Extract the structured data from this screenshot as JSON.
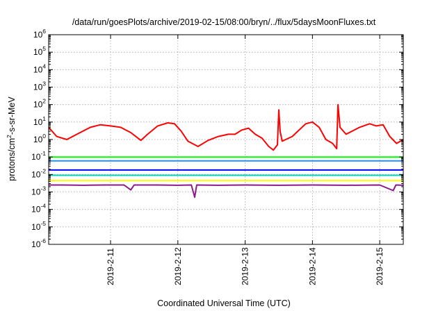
{
  "chart_data": {
    "type": "line",
    "title": "/data/run/goesPlots/archive/2019-02-15/08:00/bryn/../flux/5daysMoonFluxes.txt",
    "xlabel": "Coordinated Universal Time (UTC)",
    "ylabel": {
      "base": "protons/cm",
      "sup": "2",
      "rest": "-s-sr-MeV"
    },
    "x_unit": "days since 2019-02-10T00:00 UTC",
    "xlim": [
      0.08,
      5.35
    ],
    "x_ticks": [
      {
        "value": 1,
        "label": "2019-2-11"
      },
      {
        "value": 2,
        "label": "2019-2-12"
      },
      {
        "value": 3,
        "label": "2019-2-13"
      },
      {
        "value": 4,
        "label": "2019-2-14"
      },
      {
        "value": 5,
        "label": "2019-2-15"
      }
    ],
    "y_scale": "log",
    "ylim_exp": [
      -6,
      6
    ],
    "y_ticks": [
      {
        "base": "10",
        "exp": "-6",
        "value_exp": -6
      },
      {
        "base": "10",
        "exp": "-5",
        "value_exp": -5
      },
      {
        "base": "10",
        "exp": "-4",
        "value_exp": -4
      },
      {
        "base": "10",
        "exp": "-3",
        "value_exp": -3
      },
      {
        "base": "10",
        "exp": "-2",
        "value_exp": -2
      },
      {
        "base": "10",
        "exp": "-1",
        "value_exp": -1
      },
      {
        "base": "10",
        "exp": "0",
        "value_exp": 0
      },
      {
        "base": "10",
        "exp": "1",
        "value_exp": 1
      },
      {
        "base": "10",
        "exp": "2",
        "value_exp": 2
      },
      {
        "base": "10",
        "exp": "3",
        "value_exp": 3
      },
      {
        "base": "10",
        "exp": "4",
        "value_exp": 4
      },
      {
        "base": "10",
        "exp": "5",
        "value_exp": 5
      },
      {
        "base": "10",
        "exp": "6",
        "value_exp": 6
      }
    ],
    "grid": true,
    "series": [
      {
        "color": "#ff0000",
        "points": [
          [
            0.08,
            5.0
          ],
          [
            0.2,
            1.5
          ],
          [
            0.35,
            1.0
          ],
          [
            0.5,
            2.0
          ],
          [
            0.7,
            5.0
          ],
          [
            0.85,
            7.0
          ],
          [
            1.0,
            6.0
          ],
          [
            1.15,
            5.0
          ],
          [
            1.3,
            2.5
          ],
          [
            1.45,
            0.9
          ],
          [
            1.55,
            2.0
          ],
          [
            1.7,
            6.0
          ],
          [
            1.85,
            9.0
          ],
          [
            1.95,
            8.0
          ],
          [
            2.05,
            3.0
          ],
          [
            2.15,
            0.8
          ],
          [
            2.3,
            0.4
          ],
          [
            2.45,
            0.9
          ],
          [
            2.6,
            1.5
          ],
          [
            2.75,
            2.0
          ],
          [
            2.85,
            2.0
          ],
          [
            2.95,
            3.5
          ],
          [
            3.05,
            4.5
          ],
          [
            3.15,
            2.0
          ],
          [
            3.25,
            1.2
          ],
          [
            3.35,
            0.4
          ],
          [
            3.42,
            0.25
          ],
          [
            3.48,
            0.5
          ],
          [
            3.5,
            50.0
          ],
          [
            3.52,
            3.0
          ],
          [
            3.55,
            0.8
          ],
          [
            3.7,
            1.5
          ],
          [
            3.9,
            8.0
          ],
          [
            4.0,
            10.0
          ],
          [
            4.1,
            5.0
          ],
          [
            4.2,
            1.0
          ],
          [
            4.3,
            0.6
          ],
          [
            4.36,
            0.3
          ],
          [
            4.38,
            100.0
          ],
          [
            4.41,
            5.0
          ],
          [
            4.5,
            2.0
          ],
          [
            4.7,
            5.0
          ],
          [
            4.85,
            8.0
          ],
          [
            4.95,
            6.0
          ],
          [
            5.05,
            7.0
          ],
          [
            5.15,
            1.5
          ],
          [
            5.25,
            0.6
          ],
          [
            5.35,
            1.0
          ]
        ]
      },
      {
        "color": "#00ff00",
        "points": [
          [
            0.08,
            0.1
          ],
          [
            1.0,
            0.1
          ],
          [
            2.0,
            0.1
          ],
          [
            3.0,
            0.1
          ],
          [
            4.0,
            0.1
          ],
          [
            5.0,
            0.1
          ],
          [
            5.35,
            0.1
          ]
        ]
      },
      {
        "color": "#1e90ff",
        "points": [
          [
            0.08,
            0.06
          ],
          [
            1.0,
            0.06
          ],
          [
            2.0,
            0.06
          ],
          [
            3.0,
            0.06
          ],
          [
            4.0,
            0.06
          ],
          [
            5.0,
            0.06
          ],
          [
            5.35,
            0.06
          ]
        ]
      },
      {
        "color": "#0000ff",
        "points": [
          [
            0.08,
            0.018
          ],
          [
            1.0,
            0.018
          ],
          [
            2.0,
            0.018
          ],
          [
            3.0,
            0.018
          ],
          [
            4.0,
            0.018
          ],
          [
            5.0,
            0.018
          ],
          [
            5.35,
            0.018
          ]
        ]
      },
      {
        "color": "#00d4b8",
        "points": [
          [
            0.08,
            0.009
          ],
          [
            1.0,
            0.009
          ],
          [
            2.0,
            0.009
          ],
          [
            3.0,
            0.009
          ],
          [
            4.0,
            0.009
          ],
          [
            5.0,
            0.009
          ],
          [
            5.35,
            0.009
          ]
        ]
      },
      {
        "color": "#ffff00",
        "points": [
          [
            0.08,
            0.0045
          ],
          [
            1.0,
            0.0045
          ],
          [
            2.0,
            0.0045
          ],
          [
            3.0,
            0.0045
          ],
          [
            4.0,
            0.0045
          ],
          [
            5.0,
            0.0045
          ],
          [
            5.35,
            0.0045
          ]
        ]
      },
      {
        "color": "#8b1a89",
        "points": [
          [
            0.08,
            0.0025
          ],
          [
            0.3,
            0.0025
          ],
          [
            0.6,
            0.0024
          ],
          [
            0.9,
            0.0025
          ],
          [
            1.2,
            0.0025
          ],
          [
            1.3,
            0.0013
          ],
          [
            1.35,
            0.0025
          ],
          [
            1.7,
            0.0025
          ],
          [
            2.0,
            0.0024
          ],
          [
            2.2,
            0.0025
          ],
          [
            2.25,
            0.0005
          ],
          [
            2.28,
            0.0025
          ],
          [
            2.6,
            0.0024
          ],
          [
            3.0,
            0.0025
          ],
          [
            3.5,
            0.0024
          ],
          [
            4.0,
            0.0025
          ],
          [
            4.5,
            0.0024
          ],
          [
            5.0,
            0.0025
          ],
          [
            5.2,
            0.0012
          ],
          [
            5.24,
            0.0025
          ],
          [
            5.35,
            0.0024
          ]
        ]
      }
    ]
  }
}
